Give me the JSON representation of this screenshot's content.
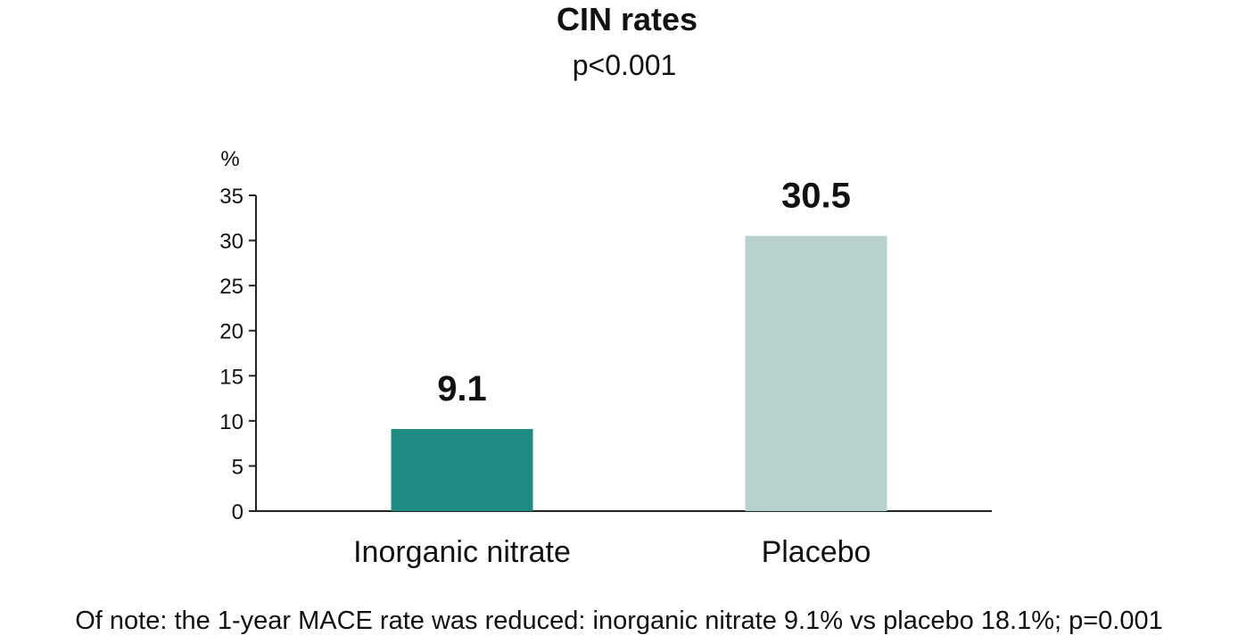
{
  "chart_data": {
    "type": "bar",
    "title": "CIN rates",
    "subtitle": "p<0.001",
    "ylabel": "%",
    "xlabel": "",
    "ylim": [
      0,
      35
    ],
    "yticks": [
      0,
      5,
      10,
      15,
      20,
      25,
      30,
      35
    ],
    "categories": [
      "Inorganic nitrate",
      "Placebo"
    ],
    "values": [
      9.1,
      30.5
    ],
    "data_labels": [
      "9.1",
      "30.5"
    ],
    "colors": [
      "#1e8c82",
      "#b8d0ce"
    ],
    "grid": false,
    "legend": "none"
  },
  "footnote": "Of note: the 1-year MACE rate was reduced: inorganic nitrate 9.1% vs placebo 18.1%; p=0.001"
}
